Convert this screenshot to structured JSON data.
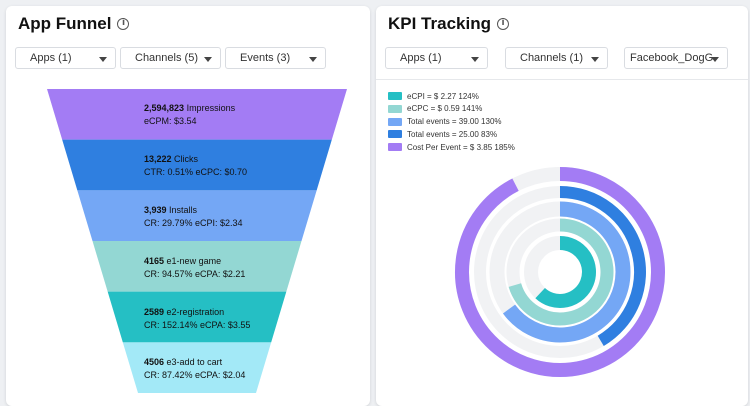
{
  "funnel_panel": {
    "title": "App Funnel",
    "filters": [
      {
        "label": "Apps (1)"
      },
      {
        "label": "Channels (5)"
      },
      {
        "label": "Events (3)"
      }
    ],
    "stages": [
      {
        "value": "2,594,823",
        "name": "Impressions",
        "metrics": "eCPM: $3.54",
        "color": "#a37cf4"
      },
      {
        "value": "13,222",
        "name": "Clicks",
        "metrics": "CTR: 0.51% eCPC: $0.70",
        "color": "#2f7fe0"
      },
      {
        "value": "3,939",
        "name": "Installs",
        "metrics": "CR: 29.79% eCPI: $2.34",
        "color": "#74a7f5"
      },
      {
        "value": "4165",
        "name": "e1-new game",
        "metrics": "CR: 94.57% eCPA: $2.21",
        "color": "#93d7d3"
      },
      {
        "value": "2589",
        "name": "e2-registration",
        "metrics": "CR: 152.14% eCPA: $3.55",
        "color": "#25bfc4"
      },
      {
        "value": "4506",
        "name": "e3-add to cart",
        "metrics": "CR: 87.42% eCPA: $2.04",
        "color": "#a3e9f7"
      }
    ]
  },
  "kpi_panel": {
    "title": "KPI Tracking",
    "filters": [
      {
        "label": "Apps (1)"
      },
      {
        "label": "Channels (1)"
      },
      {
        "label": "Facebook_DogG"
      }
    ],
    "legend": [
      {
        "label": "eCPI = $ 2.27 124%",
        "color": "#25bfc4"
      },
      {
        "label": "eCPC = $ 0.59 141%",
        "color": "#93d7d3"
      },
      {
        "label": "Total events = 39.00 130%",
        "color": "#74a7f5"
      },
      {
        "label": "Total events = 25.00 83%",
        "color": "#2f7fe0"
      },
      {
        "label": "Cost Per Event = $ 3.85 185%",
        "color": "#a37cf4"
      }
    ],
    "rings": [
      {
        "series": "eCPI",
        "percent": 124,
        "color": "#25bfc4"
      },
      {
        "series": "eCPC",
        "percent": 141,
        "color": "#93d7d3"
      },
      {
        "series": "Total events 39.00",
        "percent": 130,
        "color": "#74a7f5"
      },
      {
        "series": "Total events 25.00",
        "percent": 83,
        "color": "#2f7fe0"
      },
      {
        "series": "Cost Per Event",
        "percent": 185,
        "color": "#a37cf4"
      }
    ]
  }
}
